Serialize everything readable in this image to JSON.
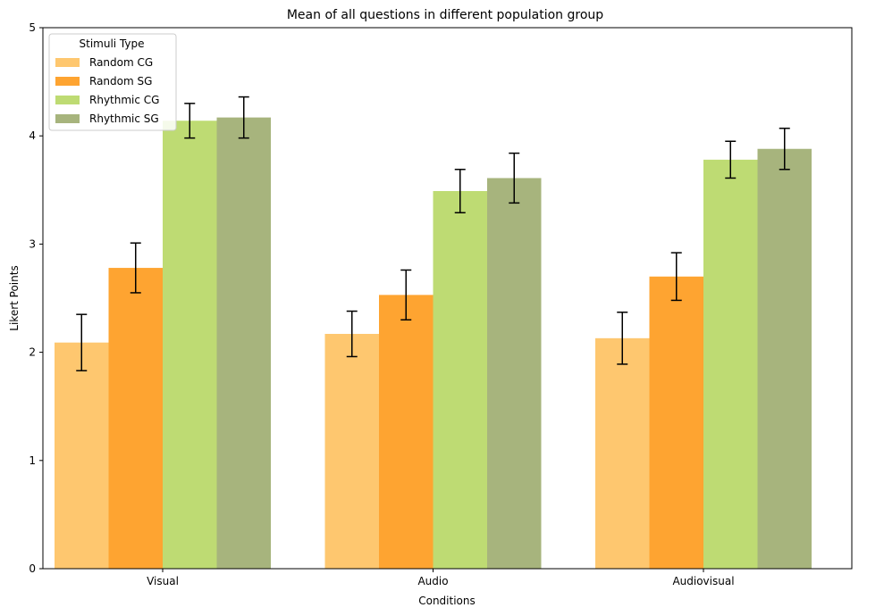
{
  "chart_data": {
    "type": "bar",
    "title": "Mean of all questions in different population group",
    "xlabel": "Conditions",
    "ylabel": "Likert Points",
    "ylim": [
      0,
      5
    ],
    "yticks": [
      "0",
      "1",
      "2",
      "3",
      "4",
      "5"
    ],
    "categories": [
      "Visual",
      "Audio",
      "Audiovisual"
    ],
    "legend": {
      "title": "Stimuli Type",
      "placement": "top-left"
    },
    "series": [
      {
        "name": "Random CG",
        "color": "#fec76f",
        "values": [
          2.09,
          2.17,
          2.13
        ],
        "errors": [
          0.26,
          0.21,
          0.24
        ]
      },
      {
        "name": "Random SG",
        "color": "#fea431",
        "values": [
          2.78,
          2.53,
          2.7
        ],
        "errors": [
          0.23,
          0.23,
          0.22
        ]
      },
      {
        "name": "Rhythmic CG",
        "color": "#bedb73",
        "values": [
          4.14,
          3.49,
          3.78
        ],
        "errors": [
          0.16,
          0.2,
          0.17
        ]
      },
      {
        "name": "Rhythmic SG",
        "color": "#a7b47d",
        "values": [
          4.17,
          3.61,
          3.88
        ],
        "errors": [
          0.19,
          0.23,
          0.19
        ]
      }
    ]
  }
}
